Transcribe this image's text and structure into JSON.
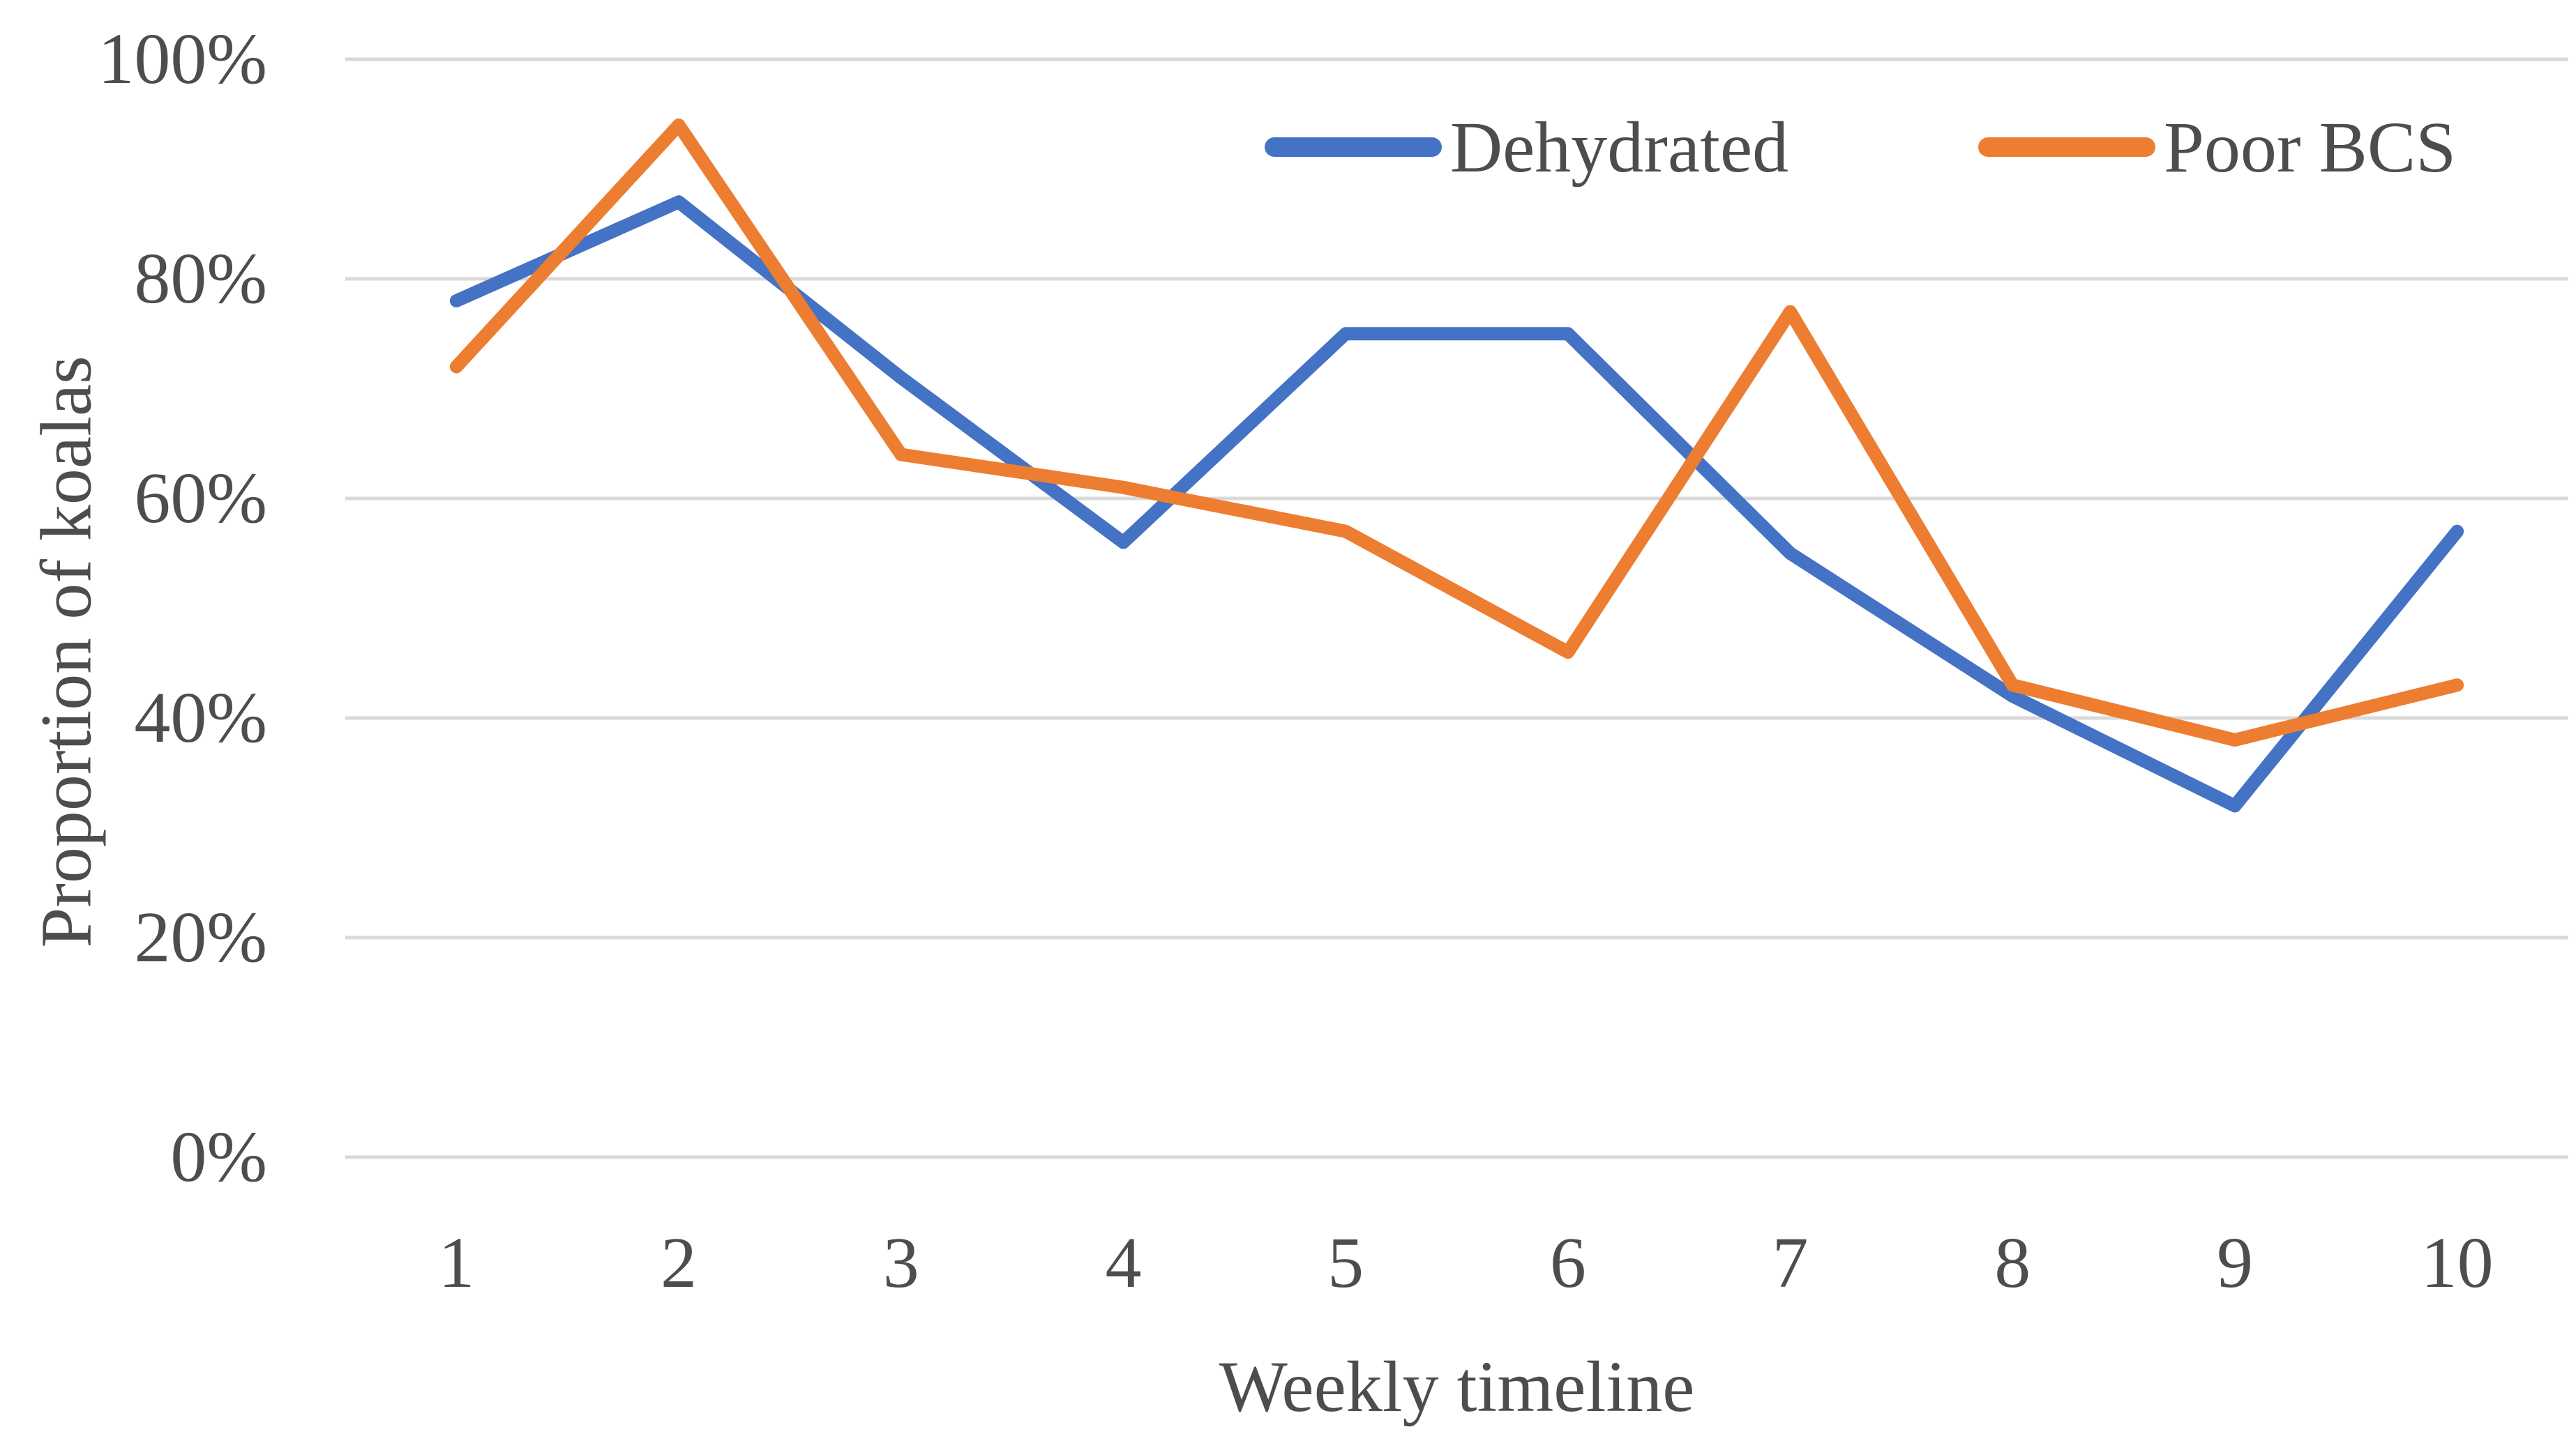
{
  "chart_data": {
    "type": "line",
    "title": "",
    "xlabel": "Weekly timeline",
    "ylabel": "Proportion of koalas",
    "x": [
      1,
      2,
      3,
      4,
      5,
      6,
      7,
      8,
      9,
      10
    ],
    "x_tick_labels": [
      "1",
      "2",
      "3",
      "4",
      "5",
      "6",
      "7",
      "8",
      "9",
      "10"
    ],
    "ylim": [
      0,
      100
    ],
    "yticks": [
      0,
      20,
      40,
      60,
      80,
      100
    ],
    "ytick_labels": [
      "0%",
      "20%",
      "40%",
      "60%",
      "80%",
      "100%"
    ],
    "grid": "horizontal gridlines only",
    "gridline_color": "#d9d9d9",
    "text_color": "#4d4d4d",
    "background_color": "#ffffff",
    "legend_position": "top-center-right, horizontal",
    "series": [
      {
        "name": "Dehydrated",
        "color": "#4472c4",
        "values": [
          78,
          87,
          71,
          56,
          75,
          75,
          55,
          42,
          32,
          57
        ]
      },
      {
        "name": "Poor BCS",
        "color": "#ed7d31",
        "values": [
          72,
          94,
          64,
          61,
          57,
          46,
          77,
          43,
          38,
          43
        ]
      }
    ]
  },
  "legend": {
    "items": [
      {
        "label": "Dehydrated",
        "color": "#4472c4"
      },
      {
        "label": "Poor BCS",
        "color": "#ed7d31"
      }
    ]
  }
}
